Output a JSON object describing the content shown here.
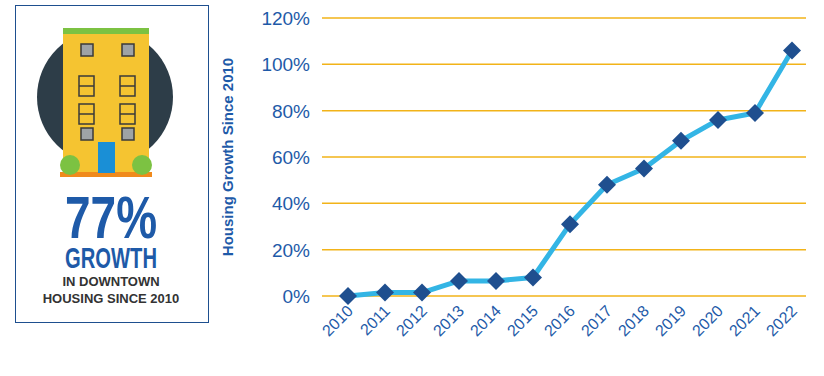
{
  "chart_data": {
    "type": "line",
    "y_label": "Housing Growth Since 2010",
    "annotations": [
      "77%",
      "GROWTH",
      "IN DOWNTOWN",
      "HOUSING SINCE 2010"
    ],
    "categories": [
      "2010",
      "2011",
      "2012",
      "2013",
      "2014",
      "2015",
      "2016",
      "2017",
      "2018",
      "2019",
      "2020",
      "2021",
      "2022"
    ],
    "values": [
      0,
      1.5,
      1.5,
      6.5,
      6.5,
      8,
      31,
      48,
      55,
      67,
      76,
      79,
      106
    ],
    "color": "#33b5e5",
    "marker": "diamond",
    "ylim": [
      0,
      120
    ],
    "yticks": [
      {
        "value": 0,
        "label": "0%"
      },
      {
        "value": 20,
        "label": "20%"
      },
      {
        "value": 40,
        "label": "40%"
      },
      {
        "value": 60,
        "label": "60%"
      },
      {
        "value": 80,
        "label": "80%"
      },
      {
        "value": 100,
        "label": "100%"
      },
      {
        "value": 120,
        "label": "120%"
      }
    ],
    "grid": true
  }
}
